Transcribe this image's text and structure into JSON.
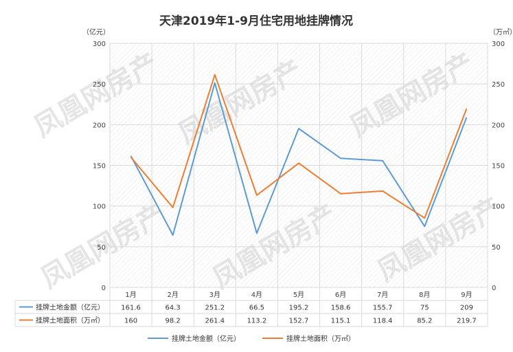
{
  "chart_data": {
    "type": "line",
    "title": "天津2019年1-9月住宅用地挂牌情况",
    "categories": [
      "1月",
      "2月",
      "3月",
      "4月",
      "5月",
      "6月",
      "7月",
      "8月",
      "9月"
    ],
    "series": [
      {
        "name": "挂牌土地金额（亿元）",
        "values": [
          161.6,
          64.3,
          251.2,
          66.5,
          195.2,
          158.6,
          155.7,
          75,
          209
        ],
        "axis": "left",
        "color": "#5b9bd5"
      },
      {
        "name": "挂牌土地面积（万㎡）",
        "values": [
          160,
          98.2,
          261.4,
          113.2,
          152.7,
          115.1,
          118.4,
          85.2,
          219.7
        ],
        "axis": "right",
        "color": "#ed7d31"
      }
    ],
    "table_values": [
      [
        "161.6",
        "64.3",
        "251.2",
        "66.5",
        "195.2",
        "158.6",
        "155.7",
        "75",
        "209"
      ],
      [
        "160",
        "98.2",
        "261.4",
        "113.2",
        "152.7",
        "115.1",
        "118.4",
        "85.2",
        "219.7"
      ]
    ],
    "y_left_unit": "（亿元）",
    "y_right_unit": "（万㎡）",
    "ylim_left": [
      0,
      300
    ],
    "ylim_right": [
      0,
      300
    ],
    "yticks": [
      0,
      50,
      100,
      150,
      200,
      250,
      300
    ],
    "grid": true,
    "legend_position": "bottom",
    "data_table": true
  },
  "watermark": "凤凰网房产",
  "colors": {
    "series1": "#5b9bd5",
    "series2": "#ed7d31",
    "grid": "#d9d9d9",
    "text": "#404040"
  }
}
